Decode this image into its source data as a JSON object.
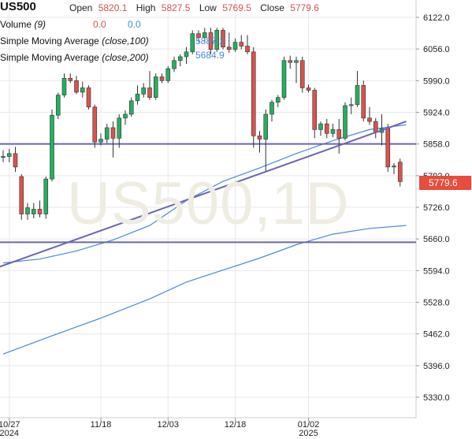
{
  "header": {
    "symbol": "US500",
    "open_label": "Open",
    "open_value": "5820.1",
    "high_label": "High",
    "high_value": "5827.5",
    "low_label": "Low",
    "low_value": "5769.5",
    "close_label": "Close",
    "close_value": "5779.6"
  },
  "indicators": {
    "volume": {
      "name": "Volume",
      "param": "(9)",
      "v1": "0.0",
      "v2": "0.0"
    },
    "sma100": {
      "name": "Simple Moving Average",
      "param": "(close,100)",
      "value": "5887.1"
    },
    "sma200": {
      "name": "Simple Moving Average",
      "param": "(close,200)",
      "value": "5684.9"
    }
  },
  "watermark": "US500,1D",
  "last_price": "5779.6",
  "colors": {
    "up": "#27ae60",
    "down": "#d9534f",
    "sma": "#4a89dc",
    "trend": "#6a65b5",
    "grid": "#e8e8e8"
  },
  "chart_data": {
    "type": "candlestick",
    "title": "US500",
    "timeframe": "1D",
    "y_axis": {
      "ticks": [
        6122.0,
        6056.0,
        5990.0,
        5924.0,
        5858.0,
        5792.0,
        5726.0,
        5660.0,
        5594.0,
        5528.0,
        5462.0,
        5396.0,
        5330.0
      ],
      "tick_labels": [
        "6122.0",
        "6056.0",
        "5990.0",
        "5924.0",
        "5858.0",
        "5792.0",
        "5726.0",
        "5660.0",
        "5594.0",
        "5528.0",
        "5462.0",
        "5396.0",
        "5330.0"
      ],
      "range": [
        5275,
        6160
      ]
    },
    "x_axis": {
      "labels": [
        {
          "index": 1,
          "text": "10/27",
          "year": "2024"
        },
        {
          "index": 16,
          "text": "11/18"
        },
        {
          "index": 27,
          "text": "12/03"
        },
        {
          "index": 38,
          "text": "12/18"
        },
        {
          "index": 50,
          "text": "01/02",
          "year": "2025"
        }
      ]
    },
    "candles": [
      {
        "o": 5830,
        "h": 5845,
        "l": 5820,
        "c": 5832
      },
      {
        "o": 5832,
        "h": 5848,
        "l": 5820,
        "c": 5838
      },
      {
        "o": 5838,
        "h": 5852,
        "l": 5800,
        "c": 5810
      },
      {
        "o": 5790,
        "h": 5795,
        "l": 5700,
        "c": 5712
      },
      {
        "o": 5712,
        "h": 5735,
        "l": 5700,
        "c": 5725
      },
      {
        "o": 5712,
        "h": 5735,
        "l": 5703,
        "c": 5722
      },
      {
        "o": 5722,
        "h": 5740,
        "l": 5705,
        "c": 5712
      },
      {
        "o": 5712,
        "h": 5790,
        "l": 5702,
        "c": 5785
      },
      {
        "o": 5785,
        "h": 5930,
        "l": 5780,
        "c": 5918
      },
      {
        "o": 5918,
        "h": 5965,
        "l": 5910,
        "c": 5960
      },
      {
        "o": 5960,
        "h": 6005,
        "l": 5955,
        "c": 5995
      },
      {
        "o": 5995,
        "h": 6005,
        "l": 5985,
        "c": 5990
      },
      {
        "o": 5990,
        "h": 6000,
        "l": 5962,
        "c": 5966
      },
      {
        "o": 5966,
        "h": 5988,
        "l": 5955,
        "c": 5975
      },
      {
        "o": 5975,
        "h": 5980,
        "l": 5930,
        "c": 5935
      },
      {
        "o": 5935,
        "h": 5940,
        "l": 5850,
        "c": 5862
      },
      {
        "o": 5862,
        "h": 5880,
        "l": 5855,
        "c": 5868
      },
      {
        "o": 5868,
        "h": 5900,
        "l": 5860,
        "c": 5892
      },
      {
        "o": 5892,
        "h": 5905,
        "l": 5830,
        "c": 5870
      },
      {
        "o": 5870,
        "h": 5920,
        "l": 5850,
        "c": 5912
      },
      {
        "o": 5912,
        "h": 5928,
        "l": 5898,
        "c": 5920
      },
      {
        "o": 5920,
        "h": 5955,
        "l": 5915,
        "c": 5948
      },
      {
        "o": 5948,
        "h": 5980,
        "l": 5940,
        "c": 5962
      },
      {
        "o": 5962,
        "h": 5985,
        "l": 5955,
        "c": 5975
      },
      {
        "o": 5975,
        "h": 6010,
        "l": 5950,
        "c": 5955
      },
      {
        "o": 5955,
        "h": 6005,
        "l": 5950,
        "c": 5998
      },
      {
        "o": 5998,
        "h": 6005,
        "l": 5985,
        "c": 5990
      },
      {
        "o": 5990,
        "h": 6020,
        "l": 5985,
        "c": 6015
      },
      {
        "o": 6015,
        "h": 6040,
        "l": 6008,
        "c": 6032
      },
      {
        "o": 6032,
        "h": 6045,
        "l": 6020,
        "c": 6040
      },
      {
        "o": 6040,
        "h": 6060,
        "l": 6025,
        "c": 6050
      },
      {
        "o": 6050,
        "h": 6095,
        "l": 6045,
        "c": 6088
      },
      {
        "o": 6088,
        "h": 6095,
        "l": 6070,
        "c": 6080
      },
      {
        "o": 6080,
        "h": 6100,
        "l": 6070,
        "c": 6090
      },
      {
        "o": 6090,
        "h": 6100,
        "l": 6045,
        "c": 6055
      },
      {
        "o": 6055,
        "h": 6100,
        "l": 6050,
        "c": 6095
      },
      {
        "o": 6095,
        "h": 6100,
        "l": 6055,
        "c": 6060
      },
      {
        "o": 6060,
        "h": 6090,
        "l": 6048,
        "c": 6055
      },
      {
        "o": 6055,
        "h": 6078,
        "l": 6050,
        "c": 6070
      },
      {
        "o": 6070,
        "h": 6085,
        "l": 6055,
        "c": 6062
      },
      {
        "o": 6062,
        "h": 6085,
        "l": 6045,
        "c": 6050
      },
      {
        "o": 6050,
        "h": 6060,
        "l": 5850,
        "c": 5875
      },
      {
        "o": 5875,
        "h": 5885,
        "l": 5840,
        "c": 5868
      },
      {
        "o": 5868,
        "h": 5930,
        "l": 5800,
        "c": 5920
      },
      {
        "o": 5920,
        "h": 5950,
        "l": 5905,
        "c": 5945
      },
      {
        "o": 5945,
        "h": 5960,
        "l": 5935,
        "c": 5955
      },
      {
        "o": 5955,
        "h": 6040,
        "l": 5950,
        "c": 6032
      },
      {
        "o": 6032,
        "h": 6042,
        "l": 6015,
        "c": 6028
      },
      {
        "o": 6028,
        "h": 6040,
        "l": 5985,
        "c": 6032
      },
      {
        "o": 6032,
        "h": 6040,
        "l": 5965,
        "c": 5975
      },
      {
        "o": 5975,
        "h": 5982,
        "l": 5965,
        "c": 5970
      },
      {
        "o": 5970,
        "h": 5975,
        "l": 5870,
        "c": 5888
      },
      {
        "o": 5888,
        "h": 5905,
        "l": 5875,
        "c": 5900
      },
      {
        "o": 5900,
        "h": 5910,
        "l": 5870,
        "c": 5880
      },
      {
        "o": 5880,
        "h": 5900,
        "l": 5872,
        "c": 5888
      },
      {
        "o": 5888,
        "h": 5910,
        "l": 5838,
        "c": 5870
      },
      {
        "o": 5870,
        "h": 5945,
        "l": 5865,
        "c": 5938
      },
      {
        "o": 5938,
        "h": 5955,
        "l": 5920,
        "c": 5940
      },
      {
        "o": 5940,
        "h": 6010,
        "l": 5935,
        "c": 5980
      },
      {
        "o": 5980,
        "h": 5990,
        "l": 5905,
        "c": 5912
      },
      {
        "o": 5912,
        "h": 5935,
        "l": 5898,
        "c": 5905
      },
      {
        "o": 5905,
        "h": 5912,
        "l": 5870,
        "c": 5882
      },
      {
        "o": 5882,
        "h": 5920,
        "l": 5855,
        "c": 5890
      },
      {
        "o": 5890,
        "h": 5900,
        "l": 5800,
        "c": 5810
      },
      {
        "o": 5810,
        "h": 5818,
        "l": 5795,
        "c": 5812
      },
      {
        "o": 5820.1,
        "h": 5827.5,
        "l": 5769.5,
        "c": 5779.6
      }
    ],
    "sma100": [
      [
        0,
        5610
      ],
      [
        6,
        5618
      ],
      [
        12,
        5635
      ],
      [
        18,
        5658
      ],
      [
        24,
        5688
      ],
      [
        30,
        5740
      ],
      [
        36,
        5780
      ],
      [
        42,
        5808
      ],
      [
        48,
        5838
      ],
      [
        54,
        5865
      ],
      [
        60,
        5888
      ],
      [
        66,
        5898
      ]
    ],
    "sma200": [
      [
        0,
        5420
      ],
      [
        8,
        5458
      ],
      [
        16,
        5495
      ],
      [
        24,
        5535
      ],
      [
        30,
        5570
      ],
      [
        36,
        5595
      ],
      [
        42,
        5620
      ],
      [
        48,
        5648
      ],
      [
        54,
        5670
      ],
      [
        60,
        5682
      ],
      [
        66,
        5688
      ]
    ],
    "horizontal_lines": [
      5858,
      5653
    ],
    "trend_line": [
      [
        -1,
        5600
      ],
      [
        66,
        5905
      ]
    ]
  }
}
